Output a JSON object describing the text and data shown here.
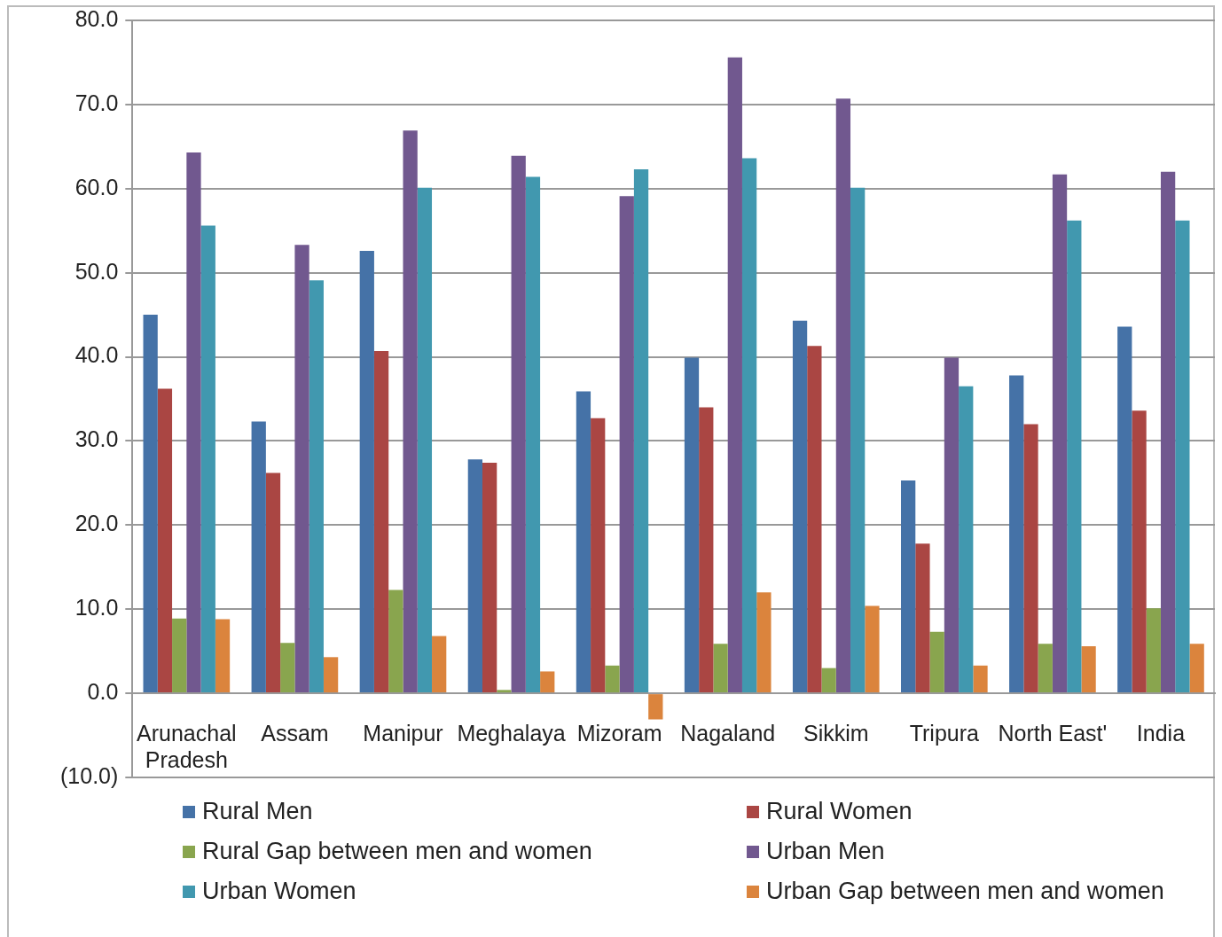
{
  "chart_data": {
    "type": "bar",
    "categories": [
      "Arunachal Pradesh",
      "Assam",
      "Manipur",
      "Meghalaya",
      "Mizoram",
      "Nagaland",
      "Sikkim",
      "Tripura",
      "North East'",
      "India"
    ],
    "series": [
      {
        "name": "Rural Men",
        "color": "#4572a7",
        "values": [
          45.0,
          32.3,
          52.6,
          27.8,
          35.9,
          39.9,
          44.3,
          25.3,
          37.8,
          43.6
        ]
      },
      {
        "name": "Rural Women",
        "color": "#aa4643",
        "values": [
          36.2,
          26.2,
          40.7,
          27.4,
          32.7,
          34.0,
          41.3,
          17.8,
          32.0,
          33.6
        ]
      },
      {
        "name": "Rural Gap between men and women",
        "color": "#89a54e",
        "values": [
          8.9,
          6.0,
          12.3,
          0.4,
          3.3,
          5.9,
          3.0,
          7.3,
          5.9,
          10.1
        ]
      },
      {
        "name": "Urban Men",
        "color": "#71588f",
        "values": [
          64.3,
          53.3,
          66.9,
          63.9,
          59.1,
          75.6,
          70.7,
          39.9,
          61.7,
          62.0
        ]
      },
      {
        "name": "Urban Women",
        "color": "#4198af",
        "values": [
          55.6,
          49.1,
          60.1,
          61.4,
          62.3,
          63.6,
          60.1,
          36.5,
          56.2,
          56.2
        ]
      },
      {
        "name": "Urban Gap between men and women",
        "color": "#db843d",
        "values": [
          8.8,
          4.3,
          6.8,
          2.6,
          -3.1,
          12.0,
          10.4,
          3.3,
          5.6,
          5.9
        ]
      }
    ],
    "ylim": [
      -10,
      80
    ],
    "yticks": [
      {
        "value": -10,
        "label": "(10.0)"
      },
      {
        "value": 0,
        "label": "0.0"
      },
      {
        "value": 10,
        "label": "10.0"
      },
      {
        "value": 20,
        "label": "20.0"
      },
      {
        "value": 30,
        "label": "30.0"
      },
      {
        "value": 40,
        "label": "40.0"
      },
      {
        "value": 50,
        "label": "50.0"
      },
      {
        "value": 60,
        "label": "60.0"
      },
      {
        "value": 70,
        "label": "70.0"
      },
      {
        "value": 80,
        "label": "80.0"
      }
    ],
    "grid": "y",
    "legend": "bottom"
  }
}
